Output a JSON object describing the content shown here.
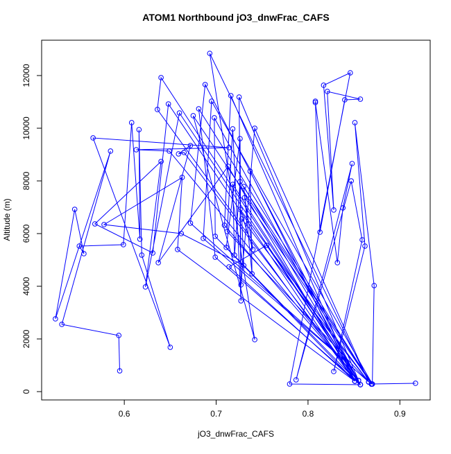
{
  "chart_data": {
    "type": "line",
    "title": "ATOM1 Northbound jO3_dnwFrac_CAFS",
    "x_label": "jO3_dnwFrac_CAFS",
    "y_label": "Altitude (m)",
    "color": "#0000ff",
    "marker": "circle",
    "xlim": [
      0.51,
      0.933
    ],
    "ylim": [
      -316,
      13342
    ],
    "xticks": [
      0.6,
      0.7,
      0.8,
      0.9
    ],
    "yticks": [
      0,
      2000,
      4000,
      6000,
      8000,
      10000,
      12000
    ],
    "x": [
      0.595,
      0.594,
      0.532,
      0.585,
      0.525,
      0.546,
      0.556,
      0.551,
      0.599,
      0.608,
      0.617,
      0.616,
      0.619,
      0.65,
      0.566,
      0.714,
      0.613,
      0.649,
      0.855,
      0.64,
      0.636,
      0.851,
      0.648,
      0.631,
      0.568,
      0.64,
      0.623,
      0.66,
      0.857,
      0.688,
      0.672,
      0.866,
      0.693,
      0.742,
      0.675,
      0.87,
      0.695,
      0.686,
      0.869,
      0.681,
      0.699,
      0.857,
      0.698,
      0.699,
      0.851,
      0.716,
      0.709,
      0.855,
      0.725,
      0.727,
      0.718,
      0.712,
      0.866,
      0.742,
      0.727,
      0.726,
      0.711,
      0.857,
      0.665,
      0.659,
      0.672,
      0.637,
      0.713,
      0.851,
      0.737,
      0.739,
      0.73,
      0.855,
      0.718,
      0.72,
      0.726,
      0.869,
      0.731,
      0.74,
      0.726,
      0.866,
      0.728,
      0.73,
      0.662,
      0.578,
      0.663,
      0.658,
      0.851,
      0.714,
      0.755,
      0.857,
      0.78,
      0.846,
      0.817,
      0.828,
      0.821,
      0.857,
      0.84,
      0.813,
      0.808,
      0.808,
      0.832,
      0.838,
      0.848,
      0.787,
      0.847,
      0.859,
      0.828,
      0.862,
      0.851,
      0.872,
      0.87,
      0.917,
      0.869
    ],
    "values": [
      789,
      2132,
      2553,
      9132,
      2763,
      6921,
      5237,
      5526,
      5579,
      10211,
      5789,
      9947,
      5184,
      1684,
      9632,
      9263,
      9184,
      9132,
      421,
      11921,
      10711,
      395,
      10921,
      5263,
      6368,
      8737,
      3974,
      10579,
      263,
      11658,
      6395,
      368,
      12842,
      1974,
      10474,
      289,
      11026,
      5816,
      289,
      10737,
      5105,
      263,
      10395,
      5895,
      395,
      11237,
      6316,
      421,
      11184,
      3447,
      9974,
      6079,
      368,
      10000,
      4053,
      9605,
      5474,
      263,
      9079,
      9026,
      9342,
      4895,
      8553,
      395,
      8368,
      4474,
      7789,
      421,
      7868,
      5184,
      7974,
      289,
      7368,
      5395,
      6921,
      368,
      6553,
      4789,
      6000,
      6342,
      8132,
      5395,
      395,
      4737,
      5553,
      263,
      289,
      12105,
      11632,
      6895,
      11395,
      11105,
      11079,
      6053,
      11026,
      10974,
      4895,
      6974,
      8658,
      447,
      8000,
      5763,
      763,
      5526,
      10211,
      4026,
      289,
      316,
      289
    ]
  }
}
